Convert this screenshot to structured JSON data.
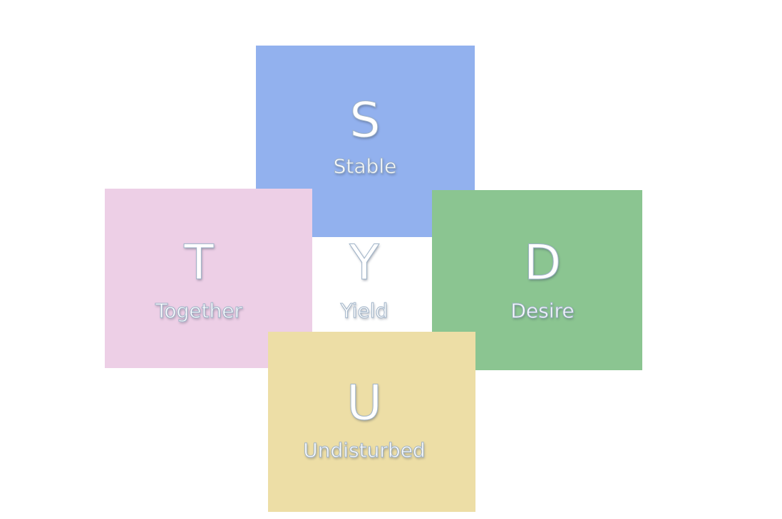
{
  "quadrants": {
    "stable": {
      "letter": "S",
      "word": "Stable",
      "color": "#92b1ee"
    },
    "together": {
      "letter": "T",
      "word": "Together",
      "color": "#edcfe6"
    },
    "yield": {
      "letter": "Y",
      "word": "Yield",
      "color": "#ffffff"
    },
    "desire": {
      "letter": "D",
      "word": "Desire",
      "color": "#8bc591"
    },
    "undisturbed": {
      "letter": "U",
      "word": "Undisturbed",
      "color": "#edde a6"
    }
  }
}
